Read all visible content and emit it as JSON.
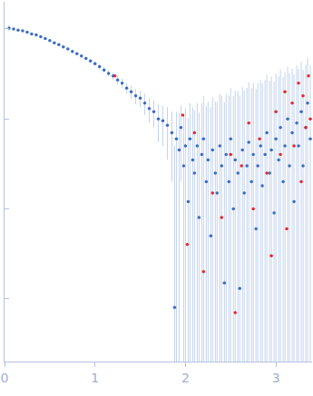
{
  "chart_data": {
    "type": "scatter",
    "log": "y",
    "tick_labels": "x",
    "grid": false,
    "marker": "circle",
    "xlim": [
      0,
      3.4
    ],
    "xticks": [
      0,
      1,
      2,
      3
    ],
    "ylim": [
      0.0002,
      2
    ],
    "yticks": [
      1,
      0.1,
      0.01,
      0.001
    ],
    "series": [
      {
        "color": "#3a6bc4",
        "x": [
          0.05,
          0.1,
          0.15,
          0.2,
          0.25,
          0.3,
          0.35,
          0.4,
          0.45,
          0.5,
          0.55,
          0.6,
          0.65,
          0.7,
          0.75,
          0.8,
          0.85,
          0.9,
          0.95,
          1.0,
          1.05,
          1.1,
          1.15,
          1.2,
          1.25,
          1.3,
          1.35,
          1.4,
          1.45,
          1.5,
          1.55,
          1.6,
          1.65,
          1.7,
          1.75,
          1.8,
          1.85,
          1.88,
          1.9,
          1.93,
          1.95,
          1.98,
          2.0,
          2.03,
          2.05,
          2.08,
          2.1,
          2.13,
          2.15,
          2.18,
          2.2,
          2.23,
          2.25,
          2.28,
          2.3,
          2.33,
          2.35,
          2.38,
          2.4,
          2.43,
          2.45,
          2.48,
          2.5,
          2.53,
          2.55,
          2.58,
          2.6,
          2.63,
          2.65,
          2.68,
          2.7,
          2.73,
          2.75,
          2.78,
          2.8,
          2.83,
          2.85,
          2.88,
          2.9,
          2.93,
          2.95,
          2.98,
          3.0,
          3.03,
          3.05,
          3.08,
          3.1,
          3.13,
          3.15,
          3.18,
          3.2,
          3.23,
          3.25,
          3.28,
          3.3,
          3.33,
          3.35,
          3.38
        ],
        "values": [
          1.02,
          1.0,
          0.97,
          0.95,
          0.92,
          0.88,
          0.86,
          0.82,
          0.78,
          0.74,
          0.7,
          0.67,
          0.63,
          0.6,
          0.56,
          0.53,
          0.5,
          0.47,
          0.44,
          0.41,
          0.38,
          0.35,
          0.32,
          0.3,
          0.27,
          0.25,
          0.22,
          0.2,
          0.18,
          0.17,
          0.15,
          0.13,
          0.12,
          0.1,
          0.095,
          0.085,
          0.07,
          0.0008,
          0.06,
          0.045,
          0.08,
          0.03,
          0.05,
          0.012,
          0.06,
          0.035,
          0.025,
          0.05,
          0.008,
          0.04,
          0.06,
          0.02,
          0.035,
          0.005,
          0.045,
          0.025,
          0.015,
          0.05,
          0.03,
          0.0015,
          0.04,
          0.02,
          0.06,
          0.01,
          0.035,
          0.025,
          0.0013,
          0.045,
          0.015,
          0.03,
          0.055,
          0.02,
          0.04,
          0.006,
          0.03,
          0.05,
          0.018,
          0.04,
          0.07,
          0.025,
          0.045,
          0.009,
          0.06,
          0.035,
          0.08,
          0.02,
          0.05,
          0.1,
          0.03,
          0.07,
          0.012,
          0.09,
          0.05,
          0.12,
          0.03,
          0.08,
          0.15,
          0.06
        ],
        "errors": [
          0.08,
          0.02,
          0.02,
          0.02,
          0.02,
          0.02,
          0.02,
          0.02,
          0.02,
          0.02,
          0.02,
          0.02,
          0.02,
          0.02,
          0.02,
          0.02,
          0.02,
          0.02,
          0.02,
          0.02,
          0.025,
          0.025,
          0.025,
          0.03,
          0.03,
          0.03,
          0.03,
          0.035,
          0.035,
          0.035,
          0.04,
          0.04,
          0.04,
          0.045,
          0.045,
          0.05,
          0.05,
          0.05,
          0.06,
          0.07,
          0.06,
          0.08,
          0.08,
          0.09,
          0.09,
          0.1,
          0.1,
          0.1,
          0.11,
          0.11,
          0.12,
          0.12,
          0.12,
          0.13,
          0.13,
          0.13,
          0.14,
          0.14,
          0.15,
          0.15,
          0.15,
          0.16,
          0.16,
          0.17,
          0.17,
          0.18,
          0.18,
          0.18,
          0.19,
          0.19,
          0.2,
          0.2,
          0.21,
          0.21,
          0.22,
          0.22,
          0.23,
          0.23,
          0.24,
          0.24,
          0.25,
          0.25,
          0.26,
          0.26,
          0.27,
          0.27,
          0.28,
          0.28,
          0.29,
          0.29,
          0.3,
          0.3,
          0.31,
          0.31,
          0.32,
          0.32,
          0.33,
          0.33
        ]
      },
      {
        "color": "#e8262a",
        "x": [
          1.22,
          1.97,
          2.02,
          2.1,
          2.2,
          2.3,
          2.4,
          2.5,
          2.55,
          2.62,
          2.7,
          2.75,
          2.82,
          2.9,
          2.95,
          3.0,
          3.05,
          3.1,
          3.12,
          3.18,
          3.2,
          3.25,
          3.28,
          3.3,
          3.33,
          3.36,
          3.38
        ],
        "values": [
          0.3,
          0.11,
          0.004,
          0.07,
          0.002,
          0.015,
          0.008,
          0.04,
          0.0007,
          0.03,
          0.09,
          0.01,
          0.06,
          0.025,
          0.003,
          0.12,
          0.04,
          0.2,
          0.006,
          0.15,
          0.05,
          0.25,
          0.02,
          0.18,
          0.08,
          0.3,
          0.1
        ]
      }
    ]
  }
}
